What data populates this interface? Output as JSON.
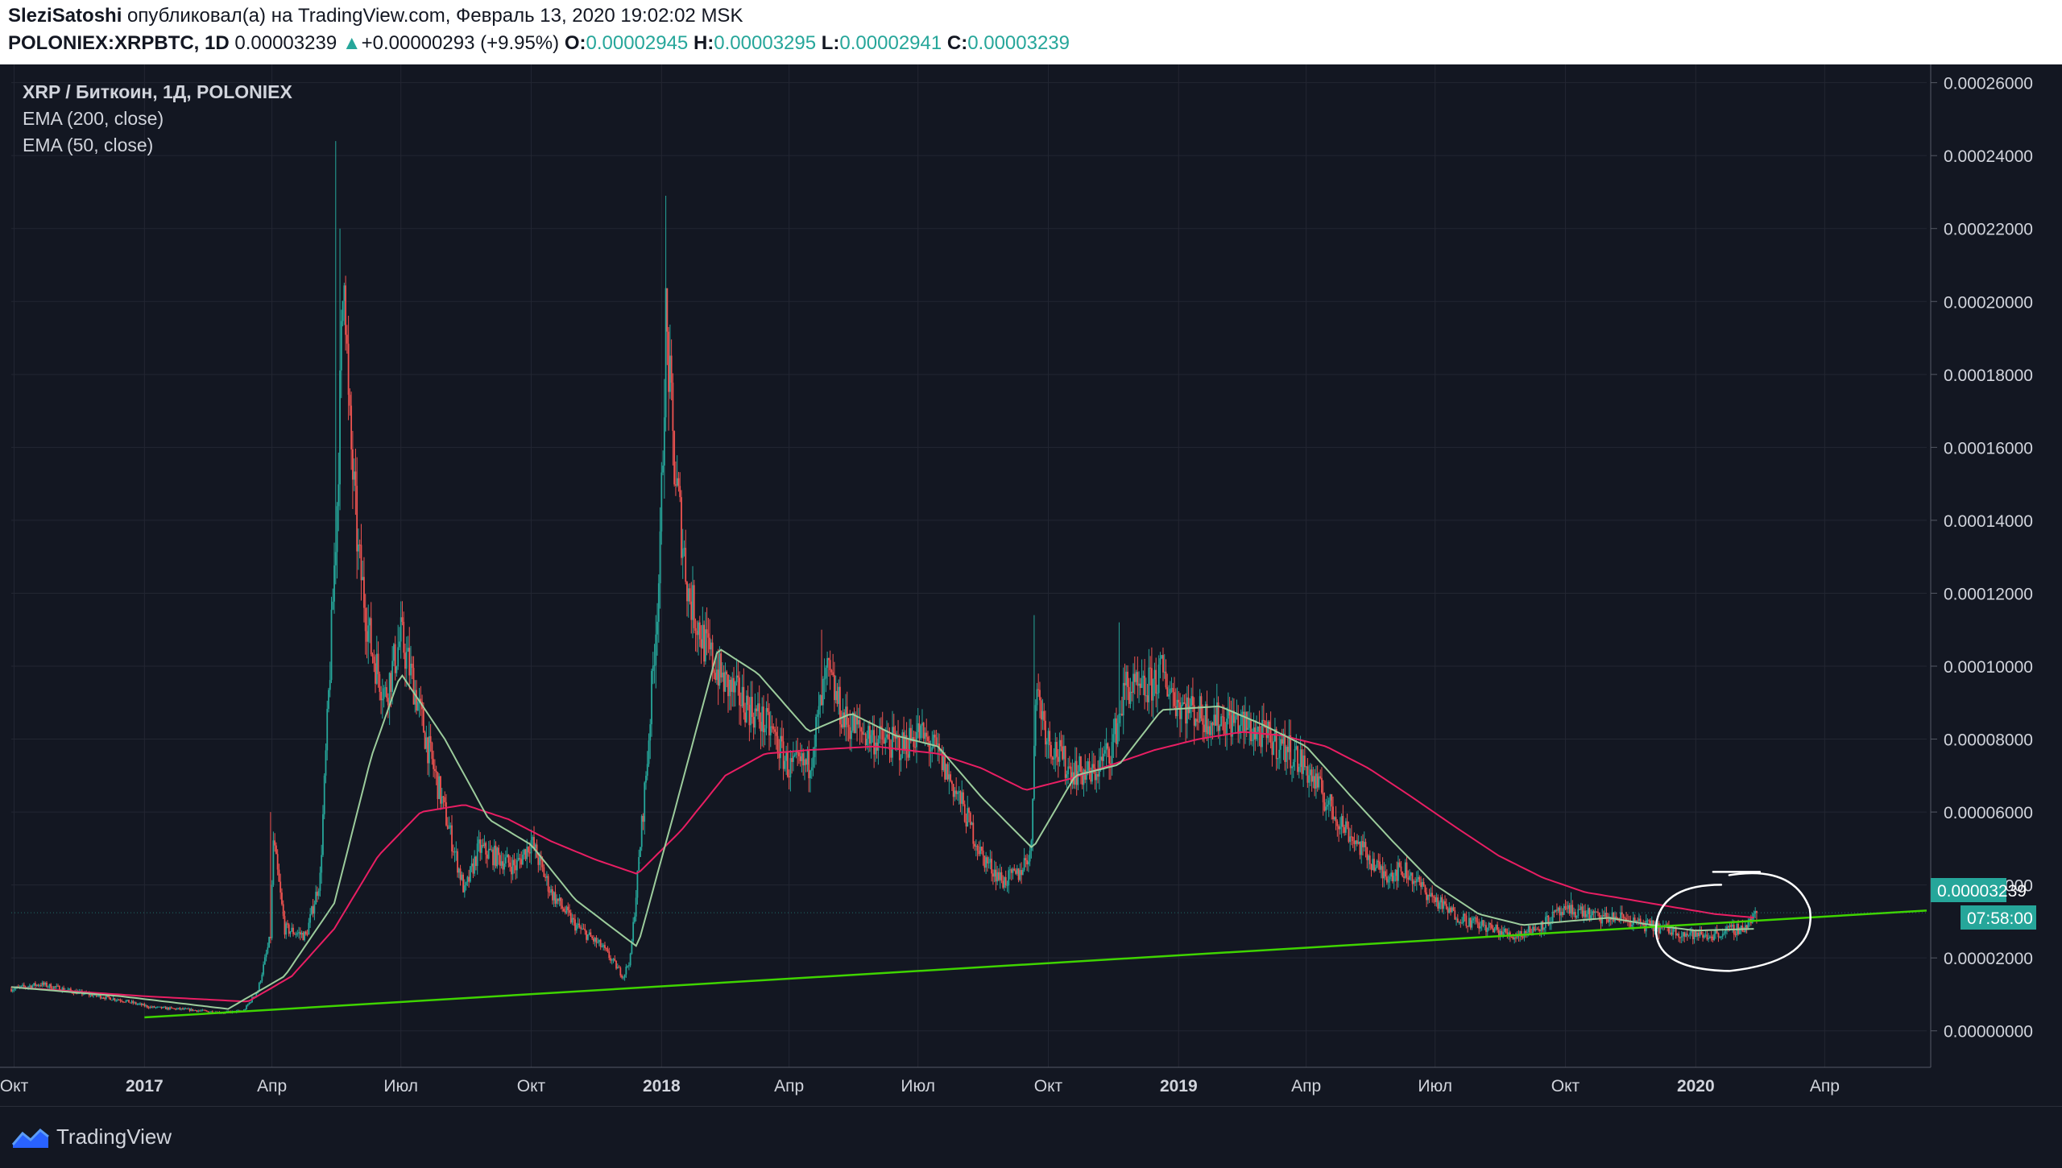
{
  "header": {
    "author": "SleziSatoshi",
    "published_text": "опубликовал(а) на TradingView.com, Февраль 13, 2020 19:02:02 MSK",
    "symbol": "POLONIEX:XRPBTC, 1D",
    "last": "0.00003239",
    "change": "+0.00000293 (+9.95%)",
    "o_label": "O:",
    "o": "0.00002945",
    "h_label": "H:",
    "h": "0.00003295",
    "l_label": "L:",
    "l": "0.00002941",
    "c_label": "C:",
    "c": "0.00003239"
  },
  "legend": {
    "title": "XRP / Биткоин, 1Д, POLONIEX",
    "ema200": "EMA (200, close)",
    "ema50": "EMA (50, close)"
  },
  "price_tag": "0.00003239",
  "countdown": "07:58:00",
  "footer": {
    "brand": "TradingView"
  },
  "colors": {
    "background": "#131722",
    "grid": "#232632",
    "up": "#26a69a",
    "down": "#ef5350",
    "ema50": "#9ccc9c",
    "ema200": "#e91e63",
    "trendline": "#3fd400",
    "axis_text": "#d1d4dc"
  },
  "chart_data": {
    "type": "candlestick",
    "x_unit": "date",
    "ylim": [
      -1e-05,
      0.000265
    ],
    "y_ticks": [
      {
        "v": 0.00026,
        "label": "0.00026000"
      },
      {
        "v": 0.00024,
        "label": "0.00024000"
      },
      {
        "v": 0.00022,
        "label": "0.00022000"
      },
      {
        "v": 0.0002,
        "label": "0.00020000"
      },
      {
        "v": 0.00018,
        "label": "0.00018000"
      },
      {
        "v": 0.00016,
        "label": "0.00016000"
      },
      {
        "v": 0.00014,
        "label": "0.00014000"
      },
      {
        "v": 0.00012,
        "label": "0.00012000"
      },
      {
        "v": 0.0001,
        "label": "0.00010000"
      },
      {
        "v": 8e-05,
        "label": "0.00008000"
      },
      {
        "v": 6e-05,
        "label": "0.00006000"
      },
      {
        "v": 4e-05,
        "label": "0.00004000"
      },
      {
        "v": 2e-05,
        "label": "0.00002000"
      },
      {
        "v": 0.0,
        "label": "0.00000000"
      }
    ],
    "x_ticks": [
      {
        "date": "2016-10-01",
        "label": "Окт",
        "bold": false
      },
      {
        "date": "2017-01-01",
        "label": "2017",
        "bold": true
      },
      {
        "date": "2017-04-01",
        "label": "Апр",
        "bold": false
      },
      {
        "date": "2017-07-01",
        "label": "Июл",
        "bold": false
      },
      {
        "date": "2017-10-01",
        "label": "Окт",
        "bold": false
      },
      {
        "date": "2018-01-01",
        "label": "2018",
        "bold": true
      },
      {
        "date": "2018-04-01",
        "label": "Апр",
        "bold": false
      },
      {
        "date": "2018-07-01",
        "label": "Июл",
        "bold": false
      },
      {
        "date": "2018-10-01",
        "label": "Окт",
        "bold": false
      },
      {
        "date": "2019-01-01",
        "label": "2019",
        "bold": true
      },
      {
        "date": "2019-04-01",
        "label": "Апр",
        "bold": false
      },
      {
        "date": "2019-07-01",
        "label": "Июл",
        "bold": false
      },
      {
        "date": "2019-10-01",
        "label": "Окт",
        "bold": false
      },
      {
        "date": "2020-01-01",
        "label": "2020",
        "bold": true
      },
      {
        "date": "2020-04-01",
        "label": "Апр",
        "bold": false
      }
    ],
    "xlim": [
      "2016-09-29",
      "2020-06-12"
    ],
    "price_keypoints": [
      [
        "2016-09-29",
        1.15e-05
      ],
      [
        "2016-10-20",
        1.28e-05
      ],
      [
        "2016-11-15",
        1.05e-05
      ],
      [
        "2016-12-15",
        8.5e-06
      ],
      [
        "2017-01-05",
        6.5e-06
      ],
      [
        "2017-02-01",
        5.8e-06
      ],
      [
        "2017-02-25",
        5e-06
      ],
      [
        "2017-03-12",
        5.5e-06
      ],
      [
        "2017-03-22",
        1.1e-05
      ],
      [
        "2017-03-31",
        2.6e-05
      ],
      [
        "2017-04-02",
        5.2e-05
      ],
      [
        "2017-04-10",
        2.8e-05
      ],
      [
        "2017-04-25",
        2.6e-05
      ],
      [
        "2017-05-05",
        4.2e-05
      ],
      [
        "2017-05-12",
        0.0001
      ],
      [
        "2017-05-17",
        0.000145
      ],
      [
        "2017-05-22",
        0.000215
      ],
      [
        "2017-05-25",
        0.00017
      ],
      [
        "2017-06-01",
        0.00013
      ],
      [
        "2017-06-10",
        0.000105
      ],
      [
        "2017-06-20",
        9.2e-05
      ],
      [
        "2017-07-01",
        0.000108
      ],
      [
        "2017-07-10",
        9.5e-05
      ],
      [
        "2017-07-20",
        7.8e-05
      ],
      [
        "2017-08-01",
        6e-05
      ],
      [
        "2017-08-15",
        3.8e-05
      ],
      [
        "2017-08-25",
        5e-05
      ],
      [
        "2017-09-05",
        4.8e-05
      ],
      [
        "2017-09-20",
        4.5e-05
      ],
      [
        "2017-10-01",
        5.2e-05
      ],
      [
        "2017-10-15",
        3.8e-05
      ],
      [
        "2017-11-01",
        2.9e-05
      ],
      [
        "2017-11-20",
        2.3e-05
      ],
      [
        "2017-12-05",
        1.5e-05
      ],
      [
        "2017-12-10",
        2e-05
      ],
      [
        "2017-12-15",
        4.2e-05
      ],
      [
        "2017-12-22",
        7.5e-05
      ],
      [
        "2017-12-31",
        0.00013
      ],
      [
        "2018-01-04",
        0.000195
      ],
      [
        "2018-01-10",
        0.000155
      ],
      [
        "2018-01-20",
        0.00012
      ],
      [
        "2018-02-01",
        0.000105
      ],
      [
        "2018-02-15",
        9.5e-05
      ],
      [
        "2018-03-01",
        9e-05
      ],
      [
        "2018-03-20",
        8.2e-05
      ],
      [
        "2018-04-01",
        7.2e-05
      ],
      [
        "2018-04-15",
        7.3e-05
      ],
      [
        "2018-04-28",
        9.8e-05
      ],
      [
        "2018-05-10",
        8.5e-05
      ],
      [
        "2018-06-01",
        8e-05
      ],
      [
        "2018-06-20",
        7.8e-05
      ],
      [
        "2018-07-01",
        8.2e-05
      ],
      [
        "2018-07-15",
        7.6e-05
      ],
      [
        "2018-08-01",
        6.2e-05
      ],
      [
        "2018-08-15",
        4.8e-05
      ],
      [
        "2018-08-30",
        4.1e-05
      ],
      [
        "2018-09-10",
        4.3e-05
      ],
      [
        "2018-09-19",
        5e-05
      ],
      [
        "2018-09-22",
        9.5e-05
      ],
      [
        "2018-10-01",
        8e-05
      ],
      [
        "2018-10-15",
        7.2e-05
      ],
      [
        "2018-11-01",
        7e-05
      ],
      [
        "2018-11-15",
        7.8e-05
      ],
      [
        "2018-11-25",
        9.5e-05
      ],
      [
        "2018-12-05",
        9.2e-05
      ],
      [
        "2018-12-20",
        9.8e-05
      ],
      [
        "2019-01-01",
        9e-05
      ],
      [
        "2019-01-20",
        8.6e-05
      ],
      [
        "2019-02-10",
        8.5e-05
      ],
      [
        "2019-03-01",
        8.1e-05
      ],
      [
        "2019-03-20",
        7.7e-05
      ],
      [
        "2019-04-01",
        7.2e-05
      ],
      [
        "2019-04-20",
        6e-05
      ],
      [
        "2019-05-10",
        5e-05
      ],
      [
        "2019-05-25",
        4.3e-05
      ],
      [
        "2019-06-10",
        4.4e-05
      ],
      [
        "2019-06-25",
        3.8e-05
      ],
      [
        "2019-07-10",
        3.3e-05
      ],
      [
        "2019-07-25",
        3e-05
      ],
      [
        "2019-08-10",
        2.8e-05
      ],
      [
        "2019-08-25",
        2.6e-05
      ],
      [
        "2019-09-10",
        2.8e-05
      ],
      [
        "2019-09-25",
        3.2e-05
      ],
      [
        "2019-10-10",
        3.3e-05
      ],
      [
        "2019-10-25",
        3.1e-05
      ],
      [
        "2019-11-10",
        3.1e-05
      ],
      [
        "2019-11-25",
        2.9e-05
      ],
      [
        "2019-12-10",
        2.8e-05
      ],
      [
        "2019-12-25",
        2.65e-05
      ],
      [
        "2020-01-10",
        2.6e-05
      ],
      [
        "2020-01-25",
        2.75e-05
      ],
      [
        "2020-02-05",
        2.85e-05
      ],
      [
        "2020-02-13",
        3.24e-05
      ]
    ],
    "ema50_keypoints": [
      [
        "2016-09-29",
        1.2e-05
      ],
      [
        "2016-12-15",
        9.5e-06
      ],
      [
        "2017-03-01",
        6e-06
      ],
      [
        "2017-04-10",
        1.5e-05
      ],
      [
        "2017-05-15",
        3.5e-05
      ],
      [
        "2017-06-10",
        7.5e-05
      ],
      [
        "2017-07-01",
        9.8e-05
      ],
      [
        "2017-08-01",
        8e-05
      ],
      [
        "2017-09-01",
        5.8e-05
      ],
      [
        "2017-10-01",
        5.1e-05
      ],
      [
        "2017-11-01",
        3.6e-05
      ],
      [
        "2017-12-15",
        2.3e-05
      ],
      [
        "2018-01-10",
        6e-05
      ],
      [
        "2018-02-10",
        0.000105
      ],
      [
        "2018-03-10",
        9.8e-05
      ],
      [
        "2018-04-15",
        8.2e-05
      ],
      [
        "2018-05-15",
        8.7e-05
      ],
      [
        "2018-06-15",
        8.1e-05
      ],
      [
        "2018-07-15",
        7.8e-05
      ],
      [
        "2018-08-15",
        6.4e-05
      ],
      [
        "2018-09-20",
        5e-05
      ],
      [
        "2018-10-20",
        7e-05
      ],
      [
        "2018-11-20",
        7.3e-05
      ],
      [
        "2018-12-20",
        8.8e-05
      ],
      [
        "2019-01-30",
        8.9e-05
      ],
      [
        "2019-03-01",
        8.4e-05
      ],
      [
        "2019-04-01",
        7.8e-05
      ],
      [
        "2019-05-01",
        6.5e-05
      ],
      [
        "2019-06-01",
        5.2e-05
      ],
      [
        "2019-07-01",
        4e-05
      ],
      [
        "2019-08-01",
        3.2e-05
      ],
      [
        "2019-09-01",
        2.9e-05
      ],
      [
        "2019-10-01",
        3e-05
      ],
      [
        "2019-11-01",
        3.1e-05
      ],
      [
        "2019-12-01",
        2.9e-05
      ],
      [
        "2020-01-01",
        2.75e-05
      ],
      [
        "2020-02-13",
        2.8e-05
      ]
    ],
    "ema200_keypoints": [
      [
        "2016-09-29",
        1.2e-05
      ],
      [
        "2017-01-01",
        9.5e-06
      ],
      [
        "2017-03-15",
        8e-06
      ],
      [
        "2017-04-15",
        1.5e-05
      ],
      [
        "2017-05-15",
        2.8e-05
      ],
      [
        "2017-06-15",
        4.8e-05
      ],
      [
        "2017-07-15",
        6e-05
      ],
      [
        "2017-08-15",
        6.2e-05
      ],
      [
        "2017-09-15",
        5.8e-05
      ],
      [
        "2017-10-15",
        5.2e-05
      ],
      [
        "2017-11-15",
        4.7e-05
      ],
      [
        "2017-12-15",
        4.3e-05
      ],
      [
        "2018-01-15",
        5.5e-05
      ],
      [
        "2018-02-15",
        7e-05
      ],
      [
        "2018-03-15",
        7.6e-05
      ],
      [
        "2018-04-15",
        7.7e-05
      ],
      [
        "2018-06-01",
        7.8e-05
      ],
      [
        "2018-07-15",
        7.6e-05
      ],
      [
        "2018-08-15",
        7.2e-05
      ],
      [
        "2018-09-15",
        6.6e-05
      ],
      [
        "2018-10-15",
        6.9e-05
      ],
      [
        "2018-11-15",
        7.3e-05
      ],
      [
        "2018-12-15",
        7.7e-05
      ],
      [
        "2019-01-15",
        8e-05
      ],
      [
        "2019-02-15",
        8.2e-05
      ],
      [
        "2019-03-15",
        8.1e-05
      ],
      [
        "2019-04-15",
        7.8e-05
      ],
      [
        "2019-05-15",
        7.2e-05
      ],
      [
        "2019-06-15",
        6.4e-05
      ],
      [
        "2019-07-15",
        5.6e-05
      ],
      [
        "2019-08-15",
        4.8e-05
      ],
      [
        "2019-09-15",
        4.2e-05
      ],
      [
        "2019-10-15",
        3.8e-05
      ],
      [
        "2019-11-15",
        3.6e-05
      ],
      [
        "2019-12-15",
        3.4e-05
      ],
      [
        "2020-01-15",
        3.2e-05
      ],
      [
        "2020-02-13",
        3.1e-05
      ]
    ],
    "spikes": [
      [
        "2017-05-16",
        0.000244
      ],
      [
        "2017-05-19",
        0.00022
      ],
      [
        "2018-01-04",
        0.000229
      ],
      [
        "2018-01-05",
        0.000202
      ],
      [
        "2018-04-24",
        0.00011
      ],
      [
        "2018-09-21",
        0.000114
      ],
      [
        "2018-11-20",
        0.000112
      ],
      [
        "2018-12-18",
        0.000103
      ],
      [
        "2017-03-31",
        6e-05
      ],
      [
        "2017-12-17",
        4.6e-05
      ],
      [
        "2019-10-05",
        3.8e-05
      ]
    ],
    "trendline": [
      [
        "2017-01-01",
        3.7e-06
      ],
      [
        "2020-06-12",
        3.3e-05
      ]
    ]
  }
}
